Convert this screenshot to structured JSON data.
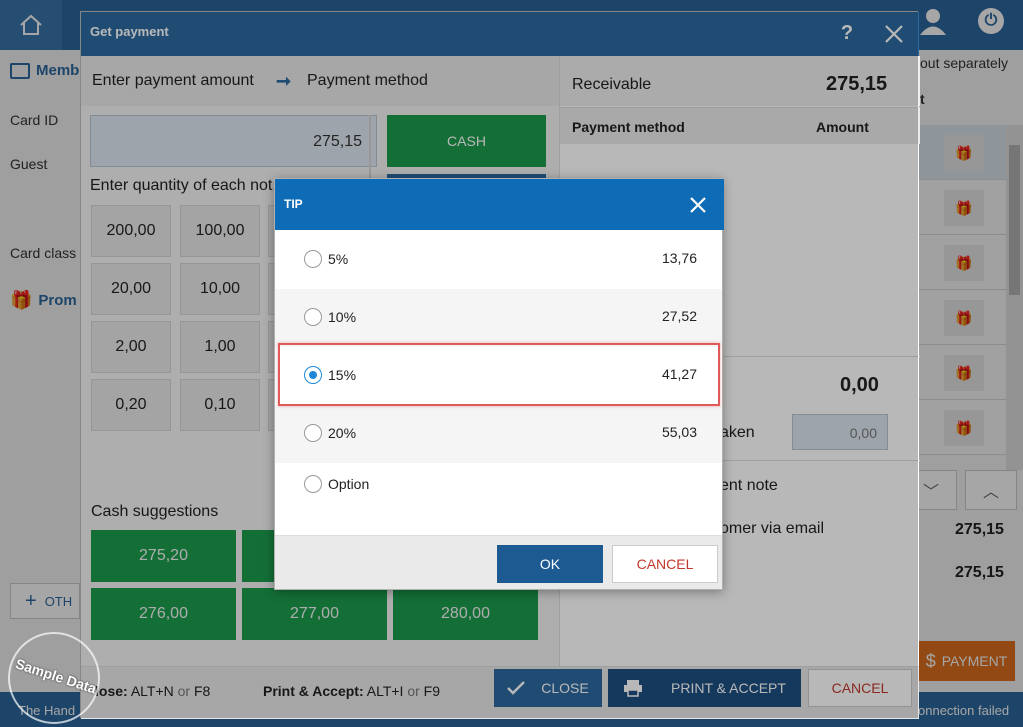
{
  "background": {
    "sections": {
      "member": "Memb",
      "promo": "Prom"
    },
    "fields": {
      "card_id": "Card ID",
      "guest": "Guest",
      "card_class": "Card class"
    },
    "other_button": "OTH",
    "right_header": "out separately",
    "right_col_hint": "t",
    "amounts": [
      "275,15",
      "275,15"
    ],
    "payment_button": "PAYMENT",
    "footer_left": "The Hand",
    "footer_right": "onnection failed"
  },
  "dialog": {
    "title": "Get payment",
    "help": "?",
    "steps": {
      "step1": "Enter payment amount",
      "step2": "Payment method"
    },
    "amount_value": "275,15",
    "cash_button": "CASH",
    "quantity_label": "Enter quantity of each not",
    "denominations": [
      "200,00",
      "100,00",
      "20,00",
      "10,00",
      "2,00",
      "1,00",
      "0,20",
      "0,10"
    ],
    "cash_suggestions_label": "Cash suggestions",
    "cash_suggestions": [
      "275,20",
      "276,00",
      "277,00",
      "280,00"
    ],
    "right": {
      "receivable_label": "Receivable",
      "receivable_value": "275,15",
      "col_method": "Payment method",
      "col_amount": "Amount",
      "change_value": "0,00",
      "taken_label": "aken",
      "taken_value": "0,00",
      "note_label": "ent note",
      "email_label": "omer via email"
    },
    "footer": {
      "hint_close_label": "lose:",
      "hint_close_keys": "ALT+N",
      "hint_close_alt": "F8",
      "hint_print_label": "Print & Accept:",
      "hint_print_keys": "ALT+I",
      "hint_print_alt": "F9",
      "or": "or",
      "close_button": "CLOSE",
      "print_button": "PRINT & ACCEPT",
      "cancel_button": "CANCEL"
    }
  },
  "tip": {
    "title": "TIP",
    "options": [
      {
        "label": "5%",
        "value": "13,76",
        "selected": false
      },
      {
        "label": "10%",
        "value": "27,52",
        "selected": false
      },
      {
        "label": "15%",
        "value": "41,27",
        "selected": true
      },
      {
        "label": "20%",
        "value": "55,03",
        "selected": false
      },
      {
        "label": "Option",
        "value": "",
        "selected": false
      }
    ],
    "ok_button": "OK",
    "cancel_button": "CANCEL"
  },
  "watermark": "Sample Data",
  "colors": {
    "primary": "#2d6aa1",
    "tip_header": "#0d6cb5",
    "cash_green": "#1b9a4b",
    "cancel_red": "#c0392b",
    "highlight": "#e05a5a",
    "payment_orange": "#e0711e"
  }
}
